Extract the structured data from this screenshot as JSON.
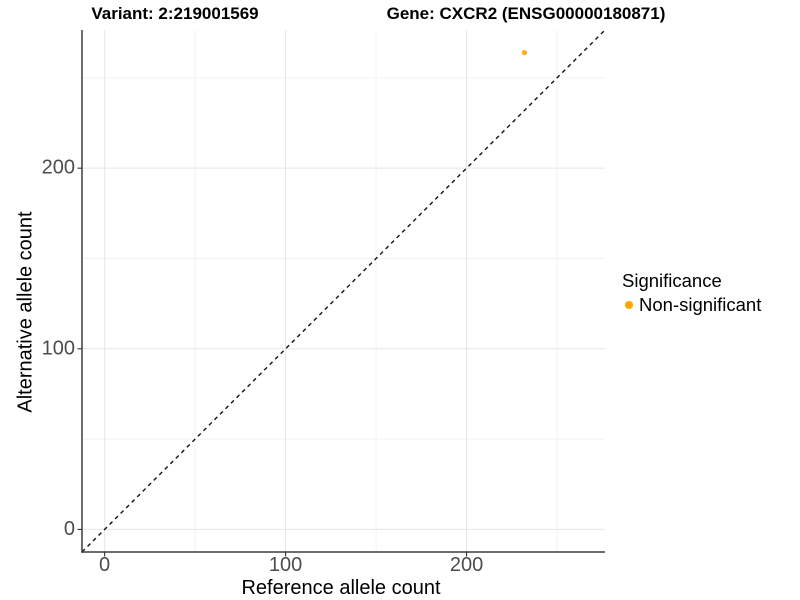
{
  "figure": {
    "title_left": "Variant: 2:219001569",
    "title_right": "Gene: CXCR2 (ENSG00000180871)"
  },
  "chart_data": {
    "type": "scatter",
    "xlabel": "Reference allele count",
    "ylabel": "Alternative allele count",
    "xlim": [
      -12.5,
      276.5
    ],
    "ylim": [
      -12.5,
      276.5
    ],
    "x_major_ticks": [
      0,
      100,
      200
    ],
    "x_minor_ticks": [
      50,
      150,
      250
    ],
    "y_major_ticks": [
      0,
      100,
      200
    ],
    "y_minor_ticks": [
      50,
      150,
      250
    ],
    "grid": "major+minor",
    "series": [
      {
        "name": "Non-significant",
        "color": "#FFA500",
        "points": [
          {
            "x": 232,
            "y": 264
          }
        ]
      }
    ],
    "reference_line": {
      "slope": 1,
      "intercept": 0,
      "style": "dashed",
      "color": "#111111"
    },
    "legend": {
      "title": "Significance",
      "position": "right",
      "items": [
        {
          "label": "Non-significant",
          "color": "#FFA500"
        }
      ]
    }
  },
  "colors": {
    "background": "#FFFFFF",
    "axis_line": "#3C3C3C",
    "tick_mark": "#333333",
    "tick_label": "#4D4D4D",
    "grid_major": "#E6E6E6",
    "grid_minor": "#F2F2F2",
    "title_text": "#000000"
  }
}
